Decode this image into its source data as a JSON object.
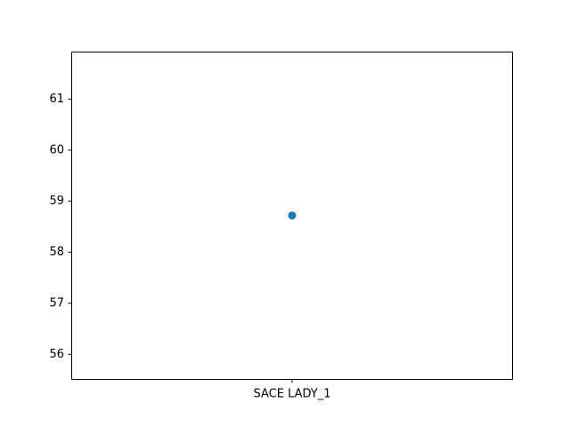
{
  "chart_data": {
    "type": "scatter",
    "categories": [
      "SACE LADY_1"
    ],
    "series": [
      {
        "values": [
          58.72
        ],
        "color": "#1f77b4"
      }
    ],
    "title": "",
    "xlabel": "",
    "ylabel": "",
    "ylim": [
      55.5,
      61.93
    ],
    "yticks": [
      56,
      57,
      58,
      59,
      60,
      61
    ],
    "ytick_labels": [
      "56",
      "57",
      "58",
      "59",
      "60",
      "61"
    ],
    "grid": false,
    "legend": "none"
  }
}
